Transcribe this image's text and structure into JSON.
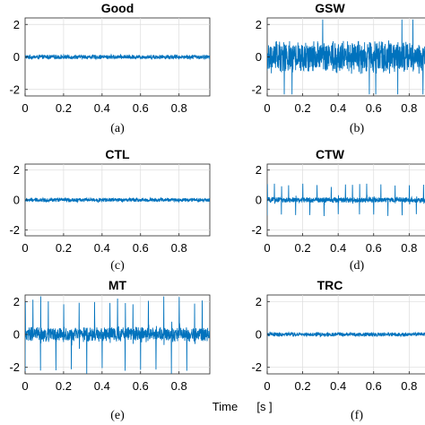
{
  "figure": {
    "xlabel": "Time",
    "xunit": "[s ]"
  },
  "chart_data": [
    {
      "type": "line",
      "title": "Good",
      "caption": "(a)",
      "xlim": [
        0,
        0.96
      ],
      "ylim": [
        -2.4,
        2.4
      ],
      "xticks": [
        "0",
        "0.2",
        "0.4",
        "0.6",
        "0.8"
      ],
      "xtick_values": [
        0,
        0.2,
        0.4,
        0.6,
        0.8
      ],
      "yticks": [
        "2",
        "0",
        "-2"
      ],
      "ytick_values": [
        2,
        0,
        -2
      ],
      "grid": true,
      "color": "#0072BD",
      "signal": {
        "noise_amplitude": 0.15,
        "impulse_interval_s": null,
        "impulse_amplitude": 0
      }
    },
    {
      "type": "line",
      "title": "GSW",
      "caption": "(b)",
      "xlim": [
        0,
        0.96
      ],
      "ylim": [
        -2.4,
        2.4
      ],
      "xticks": [
        "0",
        "0.2",
        "0.4",
        "0.6",
        "0.8"
      ],
      "xtick_values": [
        0,
        0.2,
        0.4,
        0.6,
        0.8
      ],
      "yticks": [
        "2",
        "0",
        "-2"
      ],
      "ytick_values": [
        2,
        0,
        -2
      ],
      "grid": true,
      "color": "#0072BD",
      "signal": {
        "noise_amplitude": 1.1,
        "impulse_interval_s": null,
        "impulse_amplitude": 2.3
      }
    },
    {
      "type": "line",
      "title": "CTL",
      "caption": "(c)",
      "xlim": [
        0,
        0.96
      ],
      "ylim": [
        -2.4,
        2.4
      ],
      "xticks": [
        "0",
        "0.2",
        "0.4",
        "0.6",
        "0.8"
      ],
      "xtick_values": [
        0,
        0.2,
        0.4,
        0.6,
        0.8
      ],
      "yticks": [
        "2",
        "0",
        "-2"
      ],
      "ytick_values": [
        2,
        0,
        -2
      ],
      "grid": true,
      "color": "#0072BD",
      "signal": {
        "noise_amplitude": 0.15,
        "impulse_interval_s": null,
        "impulse_amplitude": 0
      }
    },
    {
      "type": "line",
      "title": "CTW",
      "caption": "(d)",
      "xlim": [
        0,
        0.96
      ],
      "ylim": [
        -2.4,
        2.4
      ],
      "xticks": [
        "0",
        "0.2",
        "0.4",
        "0.6",
        "0.8"
      ],
      "xtick_values": [
        0,
        0.2,
        0.4,
        0.6,
        0.8
      ],
      "yticks": [
        "2",
        "0",
        "-2"
      ],
      "ytick_values": [
        2,
        0,
        -2
      ],
      "grid": true,
      "color": "#0072BD",
      "signal": {
        "noise_amplitude": 0.2,
        "impulse_interval_s": 0.04,
        "impulse_amplitude": 1.1
      }
    },
    {
      "type": "line",
      "title": "MT",
      "caption": "(e)",
      "xlim": [
        0,
        0.96
      ],
      "ylim": [
        -2.4,
        2.4
      ],
      "xticks": [
        "0",
        "0.2",
        "0.4",
        "0.6",
        "0.8"
      ],
      "xtick_values": [
        0,
        0.2,
        0.4,
        0.6,
        0.8
      ],
      "yticks": [
        "2",
        "0",
        "-2"
      ],
      "ytick_values": [
        2,
        0,
        -2
      ],
      "grid": true,
      "color": "#0072BD",
      "signal": {
        "noise_amplitude": 0.5,
        "impulse_interval_s": 0.04,
        "impulse_amplitude": 2.4
      }
    },
    {
      "type": "line",
      "title": "TRC",
      "caption": "(f)",
      "xlim": [
        0,
        0.96
      ],
      "ylim": [
        -2.4,
        2.4
      ],
      "xticks": [
        "0",
        "0.2",
        "0.4",
        "0.6",
        "0.8"
      ],
      "xtick_values": [
        0,
        0.2,
        0.4,
        0.6,
        0.8
      ],
      "yticks": [
        "2",
        "0",
        "-2"
      ],
      "ytick_values": [
        2,
        0,
        -2
      ],
      "grid": true,
      "color": "#0072BD",
      "signal": {
        "noise_amplitude": 0.14,
        "impulse_interval_s": null,
        "impulse_amplitude": 0
      }
    }
  ]
}
